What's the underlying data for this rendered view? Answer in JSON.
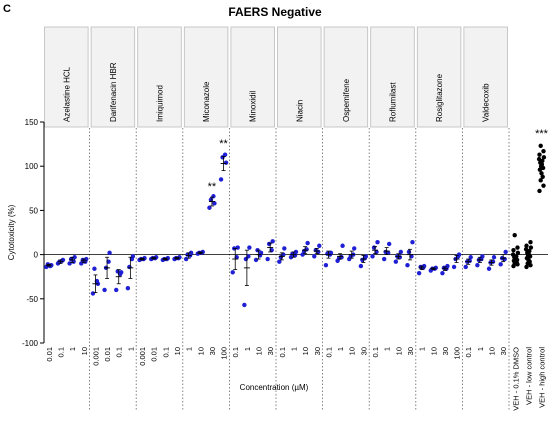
{
  "panel_label": "C",
  "chart_data": {
    "type": "scatter",
    "title": "FAERS Negative",
    "ylabel": "Cytotoxicity (%)",
    "xlabel": "Concentration (µM)",
    "ylim": [
      -100,
      150
    ],
    "yticks": [
      -100,
      -50,
      0,
      50,
      100,
      150
    ],
    "grid": false,
    "reference_line_y": 0,
    "colors": {
      "drug": "#1f1fd6",
      "control": "#000000",
      "header_fill": "#f2f2f2",
      "header_border": "#bbbbbb"
    },
    "groups": [
      {
        "name": "Azelastine HCL",
        "conditions": [
          {
            "label": "0.01",
            "mean": -12,
            "sem": 1,
            "points": [
              -14,
              -12,
              -11,
              -13
            ]
          },
          {
            "label": "0.1",
            "mean": -8,
            "sem": 2,
            "points": [
              -10,
              -6,
              -8,
              -7
            ]
          },
          {
            "label": "1",
            "mean": -6,
            "sem": 3,
            "points": [
              -10,
              -3,
              -5,
              -8
            ]
          },
          {
            "label": "10",
            "mean": -7,
            "sem": 2,
            "points": [
              -10,
              -5,
              -6,
              -8
            ]
          }
        ]
      },
      {
        "name": "Darifenacin HBR",
        "conditions": [
          {
            "label": "0.001",
            "mean": -33,
            "sem": 10,
            "points": [
              -44,
              -33,
              -16,
              -30
            ]
          },
          {
            "label": "0.01",
            "mean": -15,
            "sem": 12,
            "points": [
              -40,
              2,
              -15,
              -8
            ]
          },
          {
            "label": "0.1",
            "mean": -25,
            "sem": 8,
            "points": [
              -40,
              -20,
              -19,
              -22
            ]
          },
          {
            "label": "1",
            "mean": -15,
            "sem": 12,
            "points": [
              -38,
              -2,
              -14,
              -5
            ]
          }
        ]
      },
      {
        "name": "Imiquimod",
        "conditions": [
          {
            "label": "0.001",
            "mean": -5,
            "sem": 1,
            "points": [
              -6,
              -4,
              -5,
              -5
            ]
          },
          {
            "label": "0.01",
            "mean": -4,
            "sem": 1,
            "points": [
              -5,
              -3,
              -4,
              -4
            ]
          },
          {
            "label": "0.1",
            "mean": -5,
            "sem": 1,
            "points": [
              -6,
              -4,
              -5,
              -5
            ]
          },
          {
            "label": "10",
            "mean": -4,
            "sem": 1,
            "points": [
              -5,
              -3,
              -4,
              -4
            ]
          }
        ]
      },
      {
        "name": "Miconazole",
        "conditions": [
          {
            "label": "1",
            "mean": -1,
            "sem": 3,
            "points": [
              -5,
              2,
              0,
              -1
            ]
          },
          {
            "label": "10",
            "mean": 2,
            "sem": 1,
            "points": [
              1,
              3,
              2,
              2
            ]
          },
          {
            "label": "30",
            "mean": 60,
            "sem": 5,
            "points": [
              53,
              58,
              62,
              66
            ]
          },
          {
            "label": "100",
            "mean": 103,
            "sem": 8,
            "points": [
              85,
              104,
              110,
              113
            ]
          }
        ],
        "annotations": [
          {
            "condition": 2,
            "y": 73,
            "text": "**"
          },
          {
            "condition": 3,
            "y": 122,
            "text": "**"
          }
        ]
      },
      {
        "name": "Minoxidil",
        "conditions": [
          {
            "label": "0.1",
            "mean": -5,
            "sem": 12,
            "points": [
              -20,
              8,
              7,
              -3
            ]
          },
          {
            "label": "1",
            "mean": -15,
            "sem": 20,
            "points": [
              -57,
              8,
              -5,
              -2
            ]
          },
          {
            "label": "10",
            "mean": 0,
            "sem": 5,
            "points": [
              -6,
              2,
              5,
              -1
            ]
          },
          {
            "label": "30",
            "mean": 8,
            "sem": 5,
            "points": [
              -5,
              15,
              12,
              5
            ]
          }
        ]
      },
      {
        "name": "Niacin",
        "conditions": [
          {
            "label": "0.1",
            "mean": -2,
            "sem": 4,
            "points": [
              -8,
              7,
              -3,
              0
            ]
          },
          {
            "label": "1",
            "mean": 0,
            "sem": 3,
            "points": [
              -3,
              3,
              1,
              -1
            ]
          },
          {
            "label": "10",
            "mean": 5,
            "sem": 4,
            "points": [
              0,
              13,
              4,
              6
            ]
          },
          {
            "label": "30",
            "mean": 4,
            "sem": 3,
            "points": [
              -2,
              10,
              5,
              3
            ]
          }
        ]
      },
      {
        "name": "Ospemifene",
        "conditions": [
          {
            "label": "0.1",
            "mean": 0,
            "sem": 4,
            "points": [
              -12,
              2,
              1,
              0
            ]
          },
          {
            "label": "1",
            "mean": -2,
            "sem": 3,
            "points": [
              -7,
              10,
              -4,
              -3
            ]
          },
          {
            "label": "10",
            "mean": 0,
            "sem": 4,
            "points": [
              -5,
              7,
              -2,
              0
            ]
          },
          {
            "label": "30",
            "mean": -5,
            "sem": 4,
            "points": [
              -13,
              -2,
              -6,
              -4
            ]
          }
        ]
      },
      {
        "name": "Roflumilast",
        "conditions": [
          {
            "label": "0.1",
            "mean": 5,
            "sem": 4,
            "points": [
              -2,
              14,
              8,
              3
            ]
          },
          {
            "label": "1",
            "mean": 4,
            "sem": 4,
            "points": [
              -5,
              12,
              3,
              2
            ]
          },
          {
            "label": "10",
            "mean": -2,
            "sem": 3,
            "points": [
              -8,
              3,
              -2,
              -3
            ]
          },
          {
            "label": "30",
            "mean": 0,
            "sem": 6,
            "points": [
              -12,
              14,
              3,
              -2
            ]
          }
        ]
      },
      {
        "name": "Rosiglitazone",
        "conditions": [
          {
            "label": "1",
            "mean": -15,
            "sem": 2,
            "points": [
              -21,
              -13,
              -14,
              -15
            ]
          },
          {
            "label": "10",
            "mean": -16,
            "sem": 1,
            "points": [
              -18,
              -15,
              -16,
              -16
            ]
          },
          {
            "label": "30",
            "mean": -16,
            "sem": 2,
            "points": [
              -21,
              -13,
              -15,
              -16
            ]
          },
          {
            "label": "100",
            "mean": -5,
            "sem": 4,
            "points": [
              -14,
              0,
              -5,
              -2
            ]
          }
        ]
      },
      {
        "name": "Valdecoxib",
        "conditions": [
          {
            "label": "0.1",
            "mean": -8,
            "sem": 3,
            "points": [
              -14,
              -3,
              -8,
              -7
            ]
          },
          {
            "label": "1",
            "mean": -6,
            "sem": 3,
            "points": [
              -12,
              -2,
              -6,
              -5
            ]
          },
          {
            "label": "10",
            "mean": -9,
            "sem": 3,
            "points": [
              -16,
              -3,
              -9,
              -8
            ]
          },
          {
            "label": "30",
            "mean": -4,
            "sem": 4,
            "points": [
              -11,
              3,
              -4,
              -5
            ]
          }
        ]
      }
    ],
    "controls": [
      {
        "label": "VEH - 0.1% DMSO",
        "points": [
          -13,
          -11,
          -10,
          -9,
          -8,
          -7,
          -6,
          -5,
          -4,
          -3,
          -2,
          0,
          2,
          5,
          8,
          22
        ]
      },
      {
        "label": "VEH - low control",
        "points": [
          -14,
          -12,
          -10,
          -8,
          -6,
          -4,
          -2,
          -1,
          0,
          2,
          4,
          6,
          8,
          10,
          14
        ]
      },
      {
        "label": "VEH - high control",
        "points": [
          72,
          78,
          84,
          88,
          92,
          96,
          98,
          100,
          102,
          104,
          106,
          108,
          110,
          113,
          117,
          123
        ]
      }
    ],
    "control_annotation": {
      "y": 133,
      "text": "***"
    }
  }
}
